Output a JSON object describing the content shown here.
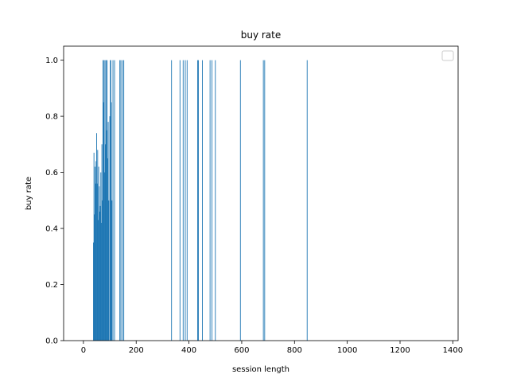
{
  "chart_data": {
    "type": "bar",
    "title": "buy rate",
    "xlabel": "session length",
    "ylabel": "buy rate",
    "xlim": [
      -75,
      1420
    ],
    "ylim": [
      0,
      1.05
    ],
    "xticks": [
      0,
      200,
      400,
      600,
      800,
      1000,
      1200,
      1400
    ],
    "yticks": [
      0.0,
      0.2,
      0.4,
      0.6,
      0.8,
      1.0
    ],
    "xtick_labels": [
      "0",
      "200",
      "400",
      "600",
      "800",
      "1000",
      "1200",
      "1400"
    ],
    "ytick_labels": [
      "0.0",
      "0.2",
      "0.4",
      "0.6",
      "0.8",
      "1.0"
    ],
    "grid": false,
    "legend": {
      "placement": "top-right",
      "entries": []
    },
    "bar_color": "#1f77b4",
    "series": [
      {
        "x": [
          38,
          40,
          42,
          44,
          46,
          48,
          50,
          52,
          54,
          56,
          58,
          60,
          62,
          64,
          66,
          68,
          70,
          72,
          74,
          76,
          78,
          80,
          82,
          84,
          86,
          88,
          90,
          92,
          94,
          96,
          100,
          102,
          104,
          106,
          108,
          112,
          118,
          138,
          142,
          148,
          153,
          334,
          366,
          378,
          386,
          393,
          433,
          436,
          451,
          480,
          487,
          500,
          595,
          682,
          687,
          848
        ],
        "values": [
          0.35,
          0.67,
          0.45,
          0.62,
          0.56,
          0.64,
          0.74,
          0.56,
          0.68,
          0.43,
          0.62,
          0.55,
          0.46,
          0.48,
          0.6,
          0.42,
          0.7,
          0.5,
          1.0,
          0.85,
          1.0,
          0.6,
          1.0,
          0.7,
          1.0,
          0.75,
          1.0,
          0.65,
          0.78,
          0.5,
          0.8,
          1.0,
          1.0,
          0.85,
          0.5,
          1.0,
          1.0,
          1.0,
          1.0,
          1.0,
          1.0,
          1.0,
          1.0,
          1.0,
          1.0,
          1.0,
          1.0,
          1.0,
          1.0,
          1.0,
          1.0,
          1.0,
          1.0,
          1.0,
          1.0,
          1.0
        ]
      }
    ]
  }
}
